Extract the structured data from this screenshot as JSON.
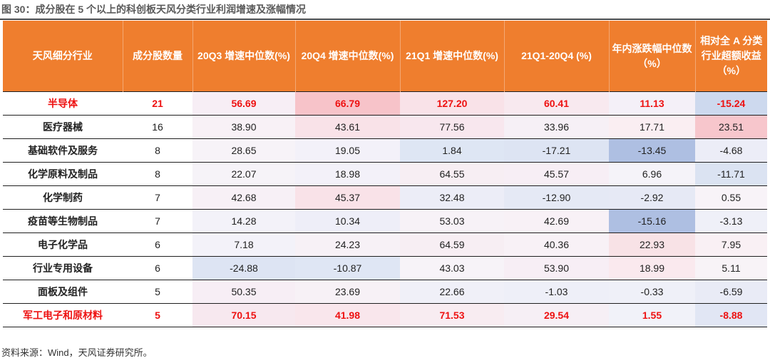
{
  "figure": {
    "title": "图 30：成分股在 5 个以上的科创板天风分类行业利润增速及涨幅情况",
    "source": "资料来源：Wind，天风证券研究所。"
  },
  "table": {
    "headers": [
      "天风细分行业",
      "成分股数量",
      "20Q3 增速中位数(%)",
      "20Q4 增速中位数(%)",
      "21Q1 增速中位数(%)",
      "21Q1-20Q4 (%)",
      "年内涨跌幅中位数（%）",
      "相对全 A 分类行业超额收益（%）"
    ],
    "rows": [
      {
        "highlight": true,
        "cells": [
          "半导体",
          "21",
          "56.69",
          "66.79",
          "127.20",
          "60.41",
          "11.13",
          "-15.24"
        ]
      },
      {
        "highlight": false,
        "cells": [
          "医疗器械",
          "16",
          "38.90",
          "43.61",
          "77.56",
          "33.96",
          "17.71",
          "23.51"
        ]
      },
      {
        "highlight": false,
        "cells": [
          "基础软件及服务",
          "8",
          "28.65",
          "19.05",
          "1.84",
          "-17.21",
          "-13.45",
          "-4.68"
        ]
      },
      {
        "highlight": false,
        "cells": [
          "化学原料及制品",
          "8",
          "22.07",
          "18.98",
          "64.55",
          "45.57",
          "6.96",
          "-11.71"
        ]
      },
      {
        "highlight": false,
        "cells": [
          "化学制药",
          "7",
          "42.68",
          "45.37",
          "32.48",
          "-12.90",
          "-2.92",
          "0.55"
        ]
      },
      {
        "highlight": false,
        "cells": [
          "疫苗等生物制品",
          "7",
          "14.28",
          "10.34",
          "53.03",
          "42.69",
          "-15.16",
          "-3.13"
        ]
      },
      {
        "highlight": false,
        "cells": [
          "电子化学品",
          "6",
          "7.18",
          "24.23",
          "64.59",
          "40.36",
          "22.93",
          "7.95"
        ]
      },
      {
        "highlight": false,
        "cells": [
          "行业专用设备",
          "6",
          "-24.88",
          "-10.87",
          "43.03",
          "53.90",
          "18.99",
          "5.11"
        ]
      },
      {
        "highlight": false,
        "cells": [
          "面板及组件",
          "5",
          "50.35",
          "23.69",
          "22.66",
          "-1.03",
          "-0.33",
          "-6.59"
        ]
      },
      {
        "highlight": true,
        "cells": [
          "军工电子和原材料",
          "5",
          "70.15",
          "41.98",
          "71.53",
          "29.54",
          "1.55",
          "-8.88"
        ]
      }
    ],
    "cell_colors": [
      [
        "#ffffff",
        "#ffffff",
        "#f7eef5",
        "#f7c3c9",
        "#f9e2e8",
        "#f8e9ef",
        "#f4f0f8",
        "#cdd9ee"
      ],
      [
        "#ffffff",
        "#ffffff",
        "#f8f1f6",
        "#f9e2e8",
        "#f8e7ee",
        "#f6f0f6",
        "#faeef2",
        "#f7c6cc"
      ],
      [
        "#ffffff",
        "#ffffff",
        "#f7f3f8",
        "#f3f1f9",
        "#dee6f4",
        "#dde4f3",
        "#aebfe2",
        "#ecedf7"
      ],
      [
        "#ffffff",
        "#ffffff",
        "#f6f3f8",
        "#f3f1f9",
        "#f7eef3",
        "#f7eef5",
        "#f5f3f9",
        "#dbe3f2"
      ],
      [
        "#ffffff",
        "#ffffff",
        "#f7f0f6",
        "#f9e2e8",
        "#ecedf7",
        "#e5e9f5",
        "#e6e9f5",
        "#f8f3f8"
      ],
      [
        "#ffffff",
        "#ffffff",
        "#f3f2f9",
        "#eeeef8",
        "#f7f2f7",
        "#f8f1f6",
        "#aebfe2",
        "#eff0f8"
      ],
      [
        "#ffffff",
        "#ffffff",
        "#f3f2f9",
        "#f7f1f6",
        "#f7eef3",
        "#f8f1f6",
        "#f8e2e6",
        "#f9f0f4"
      ],
      [
        "#ffffff",
        "#ffffff",
        "#dde4f3",
        "#dfe6f4",
        "#f7f3f8",
        "#f7eef5",
        "#fae9ee",
        "#f8f3f7"
      ],
      [
        "#ffffff",
        "#ffffff",
        "#f7eef5",
        "#f7f1f6",
        "#f0f0f8",
        "#eeeff8",
        "#eff0f8",
        "#e9ebf6"
      ],
      [
        "#ffffff",
        "#ffffff",
        "#f7e8ef",
        "#f9e6ec",
        "#f8ecf1",
        "#f6eff5",
        "#f1f2f9",
        "#e1e6f4"
      ]
    ],
    "header_color": "#ef7e2e",
    "highlight_text_color": "#ee1111"
  }
}
